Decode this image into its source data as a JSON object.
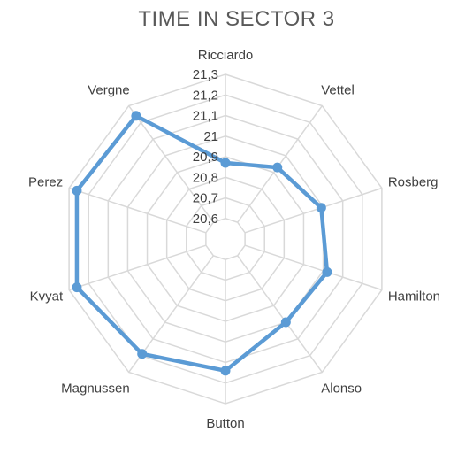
{
  "chart_data": {
    "type": "radar",
    "title": "TIME IN SECTOR 3",
    "categories": [
      "Ricciardo",
      "Vettel",
      "Rosberg",
      "Hamilton",
      "Alonso",
      "Button",
      "Magnussen",
      "Kvyat",
      "Perez",
      "Vergne"
    ],
    "series": [
      {
        "values": [
          20.87,
          20.93,
          20.99,
          21.02,
          21.0,
          21.14,
          21.19,
          21.26,
          21.26,
          21.24
        ]
      }
    ],
    "rlim": [
      20.5,
      21.3
    ],
    "tick_labels": [
      "20,6",
      "20,7",
      "20,8",
      "20,9",
      "21",
      "21,1",
      "21,2",
      "21,3"
    ],
    "tick_values": [
      20.6,
      20.7,
      20.8,
      20.9,
      21.0,
      21.1,
      21.2,
      21.3
    ],
    "grid": true,
    "legend": "none",
    "colors": {
      "series": "#5b9bd5",
      "grid": "#d9d9d9",
      "text": "#404040",
      "title": "#595959"
    }
  }
}
